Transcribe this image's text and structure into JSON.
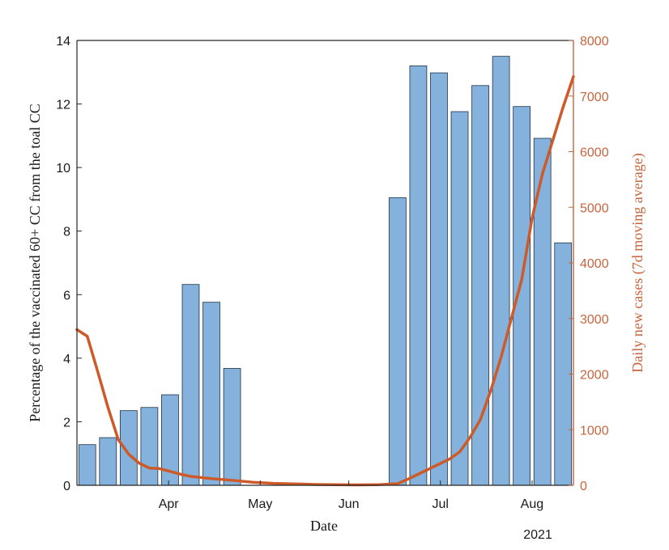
{
  "chart_data": {
    "type": "bar",
    "title": "",
    "xlabel": "Date",
    "ylabel": "Percentage of the vaccinated 60+ CC from the toal CC",
    "y2label": "Daily new cases (7d moving average)",
    "year_label": "2021",
    "x_ticks": [
      "Apr",
      "May",
      "Jun",
      "Jul",
      "Aug"
    ],
    "x_tick_weeks": [
      3.93,
      8.36,
      12.64,
      17.07,
      21.5
    ],
    "ylim": [
      0,
      14
    ],
    "y_ticks": [
      0,
      2,
      4,
      6,
      8,
      10,
      12,
      14
    ],
    "y2lim": [
      0,
      8000
    ],
    "y2_ticks": [
      0,
      1000,
      2000,
      3000,
      4000,
      5000,
      6000,
      7000,
      8000
    ],
    "xlim": [
      -0.5,
      23.5
    ],
    "grid": false,
    "colors": {
      "bars": "#84b2dc",
      "bar_edge": "#1e3246",
      "line": "#cd5a28",
      "axis": "#262626",
      "right_axis": "#c8643c"
    },
    "series": [
      {
        "kind": "bar",
        "axis": "left",
        "weeks": [
          0,
          1,
          2,
          3,
          4,
          5,
          6,
          7,
          15,
          16,
          17,
          18,
          19,
          20,
          21,
          22,
          23
        ],
        "values": [
          1.28,
          1.5,
          2.35,
          2.45,
          2.85,
          6.32,
          5.76,
          3.68,
          9.05,
          13.2,
          12.98,
          11.76,
          12.58,
          13.5,
          11.92,
          10.92,
          7.63
        ]
      },
      {
        "kind": "line",
        "axis": "right",
        "x": [
          -0.5,
          0,
          0.5,
          1,
          1.5,
          2,
          2.5,
          3,
          3.5,
          4,
          4.5,
          5,
          5.5,
          6,
          7,
          8,
          9,
          10,
          11,
          12,
          13,
          14,
          15,
          15.5,
          16,
          16.5,
          17,
          17.5,
          18,
          18.5,
          19,
          19.5,
          20,
          20.5,
          21,
          21.5,
          22,
          22.5,
          23,
          23.5
        ],
        "y": [
          2800,
          2680,
          2050,
          1400,
          820,
          560,
          400,
          310,
          300,
          250,
          200,
          160,
          140,
          120,
          90,
          55,
          35,
          25,
          15,
          10,
          8,
          10,
          30,
          110,
          200,
          290,
          380,
          470,
          600,
          860,
          1180,
          1700,
          2300,
          3000,
          3700,
          4800,
          5600,
          6200,
          6800,
          7350
        ]
      }
    ]
  }
}
